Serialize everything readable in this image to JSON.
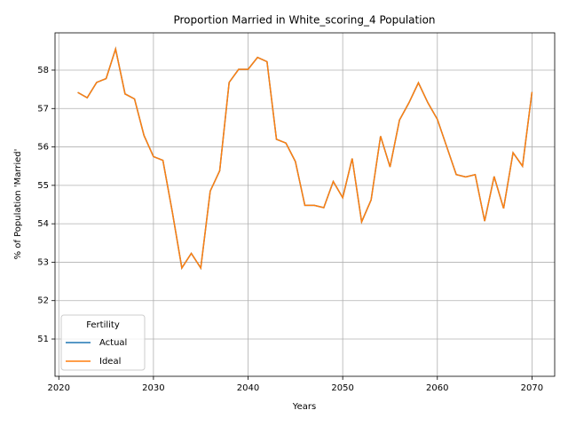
{
  "chart_data": {
    "type": "line",
    "title": "Proportion Married in White_scoring_4 Population",
    "x_label": "Years",
    "y_label": "% of Population 'Married'",
    "x": [
      2022,
      2023,
      2024,
      2025,
      2026,
      2027,
      2028,
      2029,
      2030,
      2031,
      2032,
      2033,
      2034,
      2035,
      2036,
      2037,
      2038,
      2039,
      2040,
      2041,
      2042,
      2043,
      2044,
      2045,
      2046,
      2047,
      2048,
      2049,
      2050,
      2051,
      2052,
      2053,
      2054,
      2055,
      2056,
      2057,
      2058,
      2059,
      2060,
      2061,
      2062,
      2063,
      2064,
      2065,
      2066,
      2067,
      2068,
      2069,
      2070
    ],
    "series": [
      {
        "name": "Actual",
        "color": "#1f77b4",
        "values": [
          57.42,
          57.28,
          57.68,
          57.78,
          58.55,
          57.38,
          57.25,
          56.3,
          55.75,
          55.65,
          54.3,
          52.85,
          53.23,
          52.85,
          54.85,
          55.38,
          57.68,
          58.02,
          58.02,
          58.33,
          58.22,
          56.2,
          56.1,
          55.62,
          54.48,
          54.48,
          54.42,
          55.1,
          54.68,
          55.7,
          54.05,
          54.62,
          56.28,
          55.48,
          56.7,
          57.15,
          57.67,
          57.15,
          56.72,
          56.0,
          55.28,
          55.22,
          55.28,
          54.07,
          55.23,
          54.4,
          55.85,
          55.5,
          57.43
        ]
      },
      {
        "name": "Ideal",
        "color": "#ff7f0e",
        "values": [
          57.42,
          57.28,
          57.68,
          57.78,
          58.55,
          57.38,
          57.25,
          56.3,
          55.75,
          55.65,
          54.3,
          52.85,
          53.23,
          52.85,
          54.85,
          55.38,
          57.68,
          58.02,
          58.02,
          58.33,
          58.22,
          56.2,
          56.1,
          55.62,
          54.48,
          54.48,
          54.42,
          55.1,
          54.68,
          55.7,
          54.05,
          54.62,
          56.28,
          55.48,
          56.7,
          57.15,
          57.67,
          57.15,
          56.72,
          56.0,
          55.28,
          55.22,
          55.28,
          54.07,
          55.23,
          54.4,
          55.85,
          55.5,
          57.43
        ]
      }
    ],
    "legend_title": "Fertility",
    "legend_position": "lower left",
    "grid": true,
    "xlim": [
      2019.6,
      2072.4
    ],
    "xticks": [
      2020,
      2030,
      2040,
      2050,
      2060,
      2070
    ],
    "ylim": [
      50.03,
      58.97
    ],
    "yticks": [
      51,
      52,
      53,
      54,
      55,
      56,
      57,
      58
    ]
  }
}
